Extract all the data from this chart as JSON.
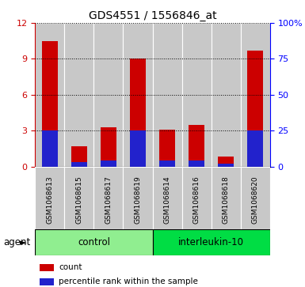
{
  "title": "GDS4551 / 1556846_at",
  "samples": [
    "GSM1068613",
    "GSM1068615",
    "GSM1068617",
    "GSM1068619",
    "GSM1068614",
    "GSM1068616",
    "GSM1068618",
    "GSM1068620"
  ],
  "count_values": [
    10.5,
    1.7,
    3.3,
    9.0,
    3.1,
    3.5,
    0.8,
    9.7
  ],
  "percentile_values_pct": [
    25,
    3,
    4,
    25,
    4,
    4,
    2,
    25
  ],
  "groups": [
    {
      "label": "control",
      "start": 0,
      "end": 4,
      "color": "#90EE90"
    },
    {
      "label": "interleukin-10",
      "start": 4,
      "end": 8,
      "color": "#00DD44"
    }
  ],
  "group_label": "agent",
  "ylim_left": [
    0,
    12
  ],
  "ylim_right": [
    0,
    100
  ],
  "yticks_left": [
    0,
    3,
    6,
    9,
    12
  ],
  "yticks_right": [
    0,
    25,
    50,
    75,
    100
  ],
  "ytick_labels_right": [
    "0",
    "25",
    "50",
    "75",
    "100%"
  ],
  "bar_color_red": "#CC0000",
  "bar_color_blue": "#2222CC",
  "bar_width": 0.55,
  "bar_bg_color": "#C8C8C8",
  "legend_items": [
    "count",
    "percentile rank within the sample"
  ],
  "title_fontsize": 10,
  "axis_fontsize": 8,
  "sample_fontsize": 6.5
}
